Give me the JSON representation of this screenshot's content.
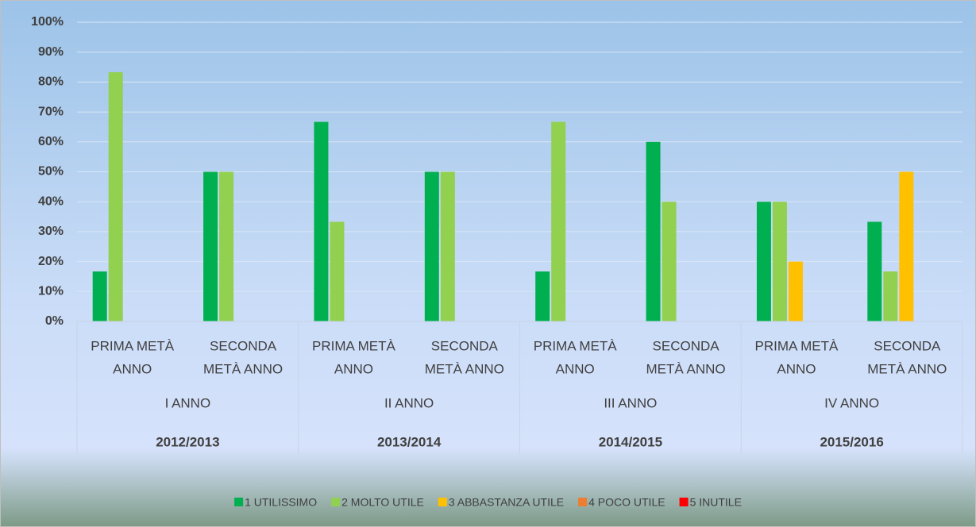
{
  "chart_data": {
    "type": "bar",
    "categories": [
      [
        "PRIMA METÀ",
        "ANNO"
      ],
      [
        "SECONDA",
        "METÀ ANNO"
      ],
      [
        "PRIMA METÀ",
        "ANNO"
      ],
      [
        "SECONDA",
        "METÀ ANNO"
      ],
      [
        "PRIMA METÀ",
        "ANNO"
      ],
      [
        "SECONDA",
        "METÀ ANNO"
      ],
      [
        "PRIMA METÀ",
        "ANNO"
      ],
      [
        "SECONDA",
        "METÀ ANNO"
      ]
    ],
    "groups": [
      "I ANNO",
      "II ANNO",
      "III ANNO",
      "IV ANNO"
    ],
    "years": [
      "2012/2013",
      "2013/2014",
      "2014/2015",
      "2015/2016"
    ],
    "series": [
      {
        "name": "1 UTILISSIMO",
        "color": "#00b050",
        "values": [
          16.7,
          50,
          66.7,
          50,
          16.7,
          60,
          40,
          33.3
        ]
      },
      {
        "name": "2 MOLTO UTILE",
        "color": "#92d050",
        "values": [
          83.3,
          50,
          33.3,
          50,
          66.7,
          40,
          40,
          16.7
        ]
      },
      {
        "name": "3 ABBASTANZA UTILE",
        "color": "#ffc000",
        "values": [
          0,
          0,
          0,
          0,
          0,
          0,
          20,
          50
        ]
      },
      {
        "name": "4 POCO UTILE",
        "color": "#ed7d31",
        "values": [
          0,
          0,
          0,
          0,
          0,
          0,
          0,
          0
        ]
      },
      {
        "name": "5 INUTILE",
        "color": "#ff0000",
        "values": [
          0,
          0,
          0,
          0,
          0,
          0,
          0,
          0
        ]
      }
    ],
    "ylim": [
      0,
      100
    ],
    "yticks": [
      {
        "value": 0,
        "label": "0%"
      },
      {
        "value": 10,
        "label": "10%"
      },
      {
        "value": 20,
        "label": "20%"
      },
      {
        "value": 30,
        "label": "30%"
      },
      {
        "value": 40,
        "label": "40%"
      },
      {
        "value": 50,
        "label": "50%"
      },
      {
        "value": 60,
        "label": "60%"
      },
      {
        "value": 70,
        "label": "70%"
      },
      {
        "value": 80,
        "label": "80%"
      },
      {
        "value": 90,
        "label": "90%"
      },
      {
        "value": 100,
        "label": "100%"
      }
    ],
    "grid": true,
    "legend": "bottom"
  }
}
